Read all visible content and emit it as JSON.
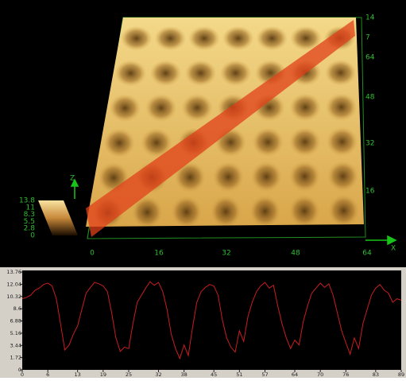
{
  "view3d": {
    "axis_labels": [
      "X",
      "Z"
    ],
    "x_labels": [
      "0",
      "16",
      "32",
      "48",
      "64"
    ],
    "right_labels": [
      "14",
      "7",
      "64",
      "48",
      "32",
      "16"
    ],
    "colorbar_labels": [
      "13.8",
      "11",
      "8.3",
      "5.5",
      "2.8",
      "0"
    ]
  },
  "chart_data": {
    "type": "line",
    "x": [
      0,
      1,
      2,
      3,
      4,
      5,
      6,
      7,
      8,
      9,
      10,
      11,
      12,
      13,
      14,
      15,
      16,
      17,
      18,
      19,
      20,
      21,
      22,
      23,
      24,
      25,
      26,
      27,
      28,
      29,
      30,
      31,
      32,
      33,
      34,
      35,
      36,
      37,
      38,
      39,
      40,
      41,
      42,
      43,
      44,
      45,
      46,
      47,
      48,
      49,
      50,
      51,
      52,
      53,
      54,
      55,
      56,
      57,
      58,
      59,
      60,
      61,
      62,
      63,
      64,
      65,
      66,
      67,
      68,
      69,
      70,
      71,
      72,
      73,
      74,
      75,
      76,
      77,
      78,
      79,
      80,
      81,
      82,
      83,
      84,
      85,
      86,
      87,
      88,
      89
    ],
    "series": [
      {
        "color": "#c81e1e",
        "values": [
          10.0,
          10.2,
          10.5,
          11.2,
          11.5,
          12.0,
          12.2,
          11.8,
          10.0,
          6.5,
          2.8,
          3.5,
          5.0,
          6.2,
          8.5,
          10.8,
          11.6,
          12.3,
          12.1,
          11.8,
          11.0,
          8.0,
          4.5,
          2.6,
          3.2,
          3.0,
          6.5,
          9.5,
          10.5,
          11.5,
          12.4,
          11.9,
          12.3,
          11.0,
          8.5,
          5.0,
          3.0,
          1.6,
          3.5,
          2.0,
          6.0,
          9.5,
          11.0,
          11.6,
          12.0,
          11.8,
          10.5,
          7.0,
          4.5,
          3.2,
          2.5,
          5.5,
          4.0,
          7.5,
          9.5,
          11.0,
          11.8,
          12.3,
          11.5,
          11.9,
          9.0,
          6.5,
          4.5,
          3.0,
          4.2,
          3.5,
          6.8,
          9.0,
          10.8,
          11.5,
          12.2,
          11.6,
          12.1,
          10.5,
          8.0,
          5.5,
          3.8,
          2.2,
          4.5,
          3.0,
          6.5,
          8.5,
          10.5,
          11.5,
          12.0,
          11.2,
          10.8,
          9.5,
          10.0,
          9.8
        ]
      }
    ],
    "xlim": [
      0,
      89
    ],
    "ylim": [
      0,
      13.76
    ],
    "xticks": [
      0,
      6,
      13,
      19,
      25,
      32,
      38,
      45,
      51,
      57,
      64,
      70,
      76,
      83,
      89
    ],
    "yticks": [
      0,
      1.72,
      3.44,
      5.16,
      6.88,
      8.6,
      10.32,
      12.04,
      13.76
    ]
  }
}
